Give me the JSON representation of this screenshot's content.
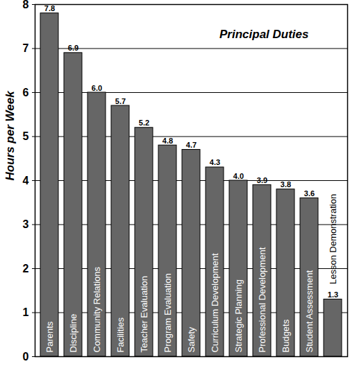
{
  "chart_data": {
    "type": "bar",
    "title": "Principal Duties",
    "y_label": "Hours per Week",
    "categories": [
      "Parents",
      "Discipline",
      "Community Relations",
      "Facilities",
      "Teacher Evaluation",
      "Program Evaluation",
      "Safety",
      "Curriculum Development",
      "Strategic Planning",
      "Professional Development",
      "Budgets",
      "Student Assessment",
      "Lesson Demonstration"
    ],
    "values": [
      7.8,
      6.9,
      6.0,
      5.7,
      5.2,
      4.8,
      4.7,
      4.3,
      4.0,
      3.9,
      3.8,
      3.6,
      1.3
    ],
    "value_labels": [
      "7.8",
      "6.9",
      "6.0",
      "5.7",
      "5.2",
      "4.8",
      "4.7",
      "4.3",
      "4.0",
      "3.9",
      "3.8",
      "3.6",
      "1.3"
    ],
    "color": "#666666",
    "ylim": [
      0,
      8
    ],
    "yticks": [
      0,
      1,
      2,
      3,
      4,
      5,
      6,
      7,
      8
    ],
    "grid": true,
    "data_labels": true,
    "tick_labels": "y"
  }
}
